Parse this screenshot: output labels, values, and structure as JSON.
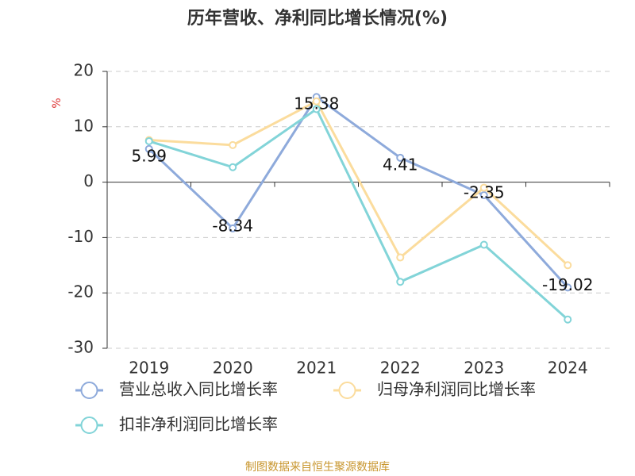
{
  "chart_data": {
    "type": "line",
    "title": "历年营收、净利同比增长情况(%)",
    "y_label": "%",
    "categories": [
      "2019",
      "2020",
      "2021",
      "2022",
      "2023",
      "2024"
    ],
    "series": [
      {
        "name": "营业总收入同比增长率",
        "color": "#8eaadb",
        "values": [
          5.99,
          -8.34,
          15.38,
          4.41,
          -2.35,
          -19.02
        ],
        "show_labels": true
      },
      {
        "name": "归母净利润同比增长率",
        "color": "#fbdc9d",
        "values": [
          7.6,
          6.7,
          14.6,
          -13.6,
          -1.0,
          -15.0
        ],
        "show_labels": false
      },
      {
        "name": "扣非净利润同比增长率",
        "color": "#82d4d8",
        "values": [
          7.4,
          2.7,
          13.2,
          -18.0,
          -11.3,
          -24.8
        ],
        "show_labels": false
      }
    ],
    "ylim": [
      -30,
      20
    ],
    "yticks": [
      -30,
      -20,
      -10,
      0,
      10,
      20
    ],
    "grid": true,
    "source": "制图数据来自恒生聚源数据库"
  }
}
